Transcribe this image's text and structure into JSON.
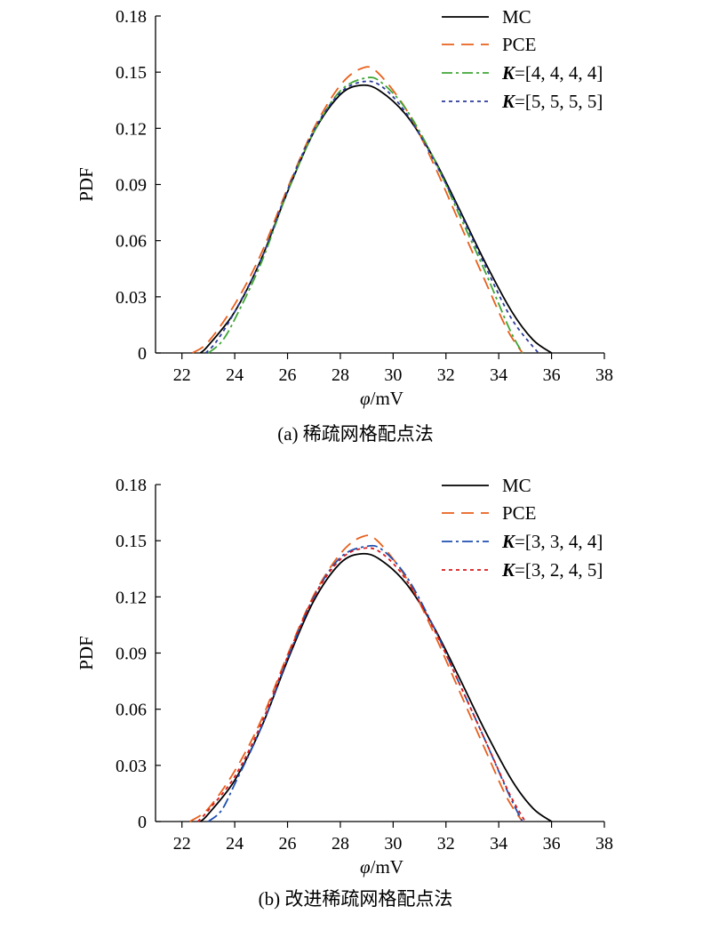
{
  "chart_data": [
    {
      "type": "line",
      "caption": "(a) 稀疏网格配点法",
      "xlabel_symbol": "φ",
      "xlabel_unit": "/mV",
      "ylabel": "PDF",
      "xlim": [
        21,
        38
      ],
      "ylim": [
        0,
        0.18
      ],
      "xticks": [
        "22",
        "24",
        "26",
        "28",
        "30",
        "32",
        "34",
        "36",
        "38"
      ],
      "yticks": [
        "0",
        "0.03",
        "0.06",
        "0.09",
        "0.12",
        "0.15",
        "0.18"
      ],
      "legend_position": "top-right",
      "series": [
        {
          "name": "MC",
          "legend_prefix": "",
          "legend_rest": "MC",
          "color": "#000000",
          "dash": "none",
          "points": [
            [
              22.7,
              0
            ],
            [
              23.0,
              0.004
            ],
            [
              24.0,
              0.022
            ],
            [
              25.0,
              0.05
            ],
            [
              26.0,
              0.086
            ],
            [
              27.0,
              0.118
            ],
            [
              28.0,
              0.138
            ],
            [
              28.8,
              0.143
            ],
            [
              29.5,
              0.14
            ],
            [
              30.5,
              0.127
            ],
            [
              31.5,
              0.105
            ],
            [
              32.5,
              0.077
            ],
            [
              33.5,
              0.048
            ],
            [
              34.5,
              0.022
            ],
            [
              35.3,
              0.007
            ],
            [
              36.0,
              0
            ]
          ]
        },
        {
          "name": "PCE",
          "legend_prefix": "",
          "legend_rest": "PCE",
          "color": "#e8601c",
          "dash": "14,8",
          "points": [
            [
              22.4,
              0
            ],
            [
              23.0,
              0.006
            ],
            [
              24.0,
              0.026
            ],
            [
              25.0,
              0.053
            ],
            [
              26.0,
              0.088
            ],
            [
              27.0,
              0.12
            ],
            [
              28.0,
              0.143
            ],
            [
              28.8,
              0.152
            ],
            [
              29.4,
              0.15
            ],
            [
              30.5,
              0.13
            ],
            [
              31.5,
              0.102
            ],
            [
              32.5,
              0.07
            ],
            [
              33.5,
              0.038
            ],
            [
              34.3,
              0.013
            ],
            [
              34.9,
              0
            ]
          ]
        },
        {
          "name": "K=[4, 4, 4, 4]",
          "legend_prefix": "K",
          "legend_rest": "=[4, 4, 4, 4]",
          "color": "#3fa535",
          "dash": "12,4,3,4",
          "points": [
            [
              23.0,
              0
            ],
            [
              23.5,
              0.006
            ],
            [
              24.0,
              0.018
            ],
            [
              25.0,
              0.048
            ],
            [
              26.0,
              0.086
            ],
            [
              27.0,
              0.118
            ],
            [
              28.0,
              0.14
            ],
            [
              29.0,
              0.147
            ],
            [
              29.6,
              0.144
            ],
            [
              30.5,
              0.13
            ],
            [
              31.5,
              0.105
            ],
            [
              32.5,
              0.074
            ],
            [
              33.5,
              0.043
            ],
            [
              34.4,
              0.013
            ],
            [
              34.9,
              0
            ]
          ]
        },
        {
          "name": "K=[5, 5, 5, 5]",
          "legend_prefix": "K",
          "legend_rest": "=[5, 5, 5, 5]",
          "color": "#2b3a99",
          "dash": "4,4",
          "points": [
            [
              22.9,
              0
            ],
            [
              23.3,
              0.006
            ],
            [
              24.0,
              0.022
            ],
            [
              25.0,
              0.05
            ],
            [
              26.0,
              0.087
            ],
            [
              27.0,
              0.119
            ],
            [
              28.0,
              0.139
            ],
            [
              28.9,
              0.145
            ],
            [
              29.6,
              0.142
            ],
            [
              30.5,
              0.128
            ],
            [
              31.5,
              0.104
            ],
            [
              32.5,
              0.076
            ],
            [
              33.5,
              0.046
            ],
            [
              34.5,
              0.018
            ],
            [
              35.5,
              0
            ]
          ]
        }
      ]
    },
    {
      "type": "line",
      "caption": "(b) 改进稀疏网格配点法",
      "xlabel_symbol": "φ",
      "xlabel_unit": "/mV",
      "ylabel": "PDF",
      "xlim": [
        21,
        38
      ],
      "ylim": [
        0,
        0.18
      ],
      "xticks": [
        "22",
        "24",
        "26",
        "28",
        "30",
        "32",
        "34",
        "36",
        "38"
      ],
      "yticks": [
        "0",
        "0.03",
        "0.06",
        "0.09",
        "0.12",
        "0.15",
        "0.18"
      ],
      "legend_position": "top-right",
      "series": [
        {
          "name": "MC",
          "legend_prefix": "",
          "legend_rest": "MC",
          "color": "#000000",
          "dash": "none",
          "points": [
            [
              22.7,
              0
            ],
            [
              23.0,
              0.004
            ],
            [
              24.0,
              0.022
            ],
            [
              25.0,
              0.05
            ],
            [
              26.0,
              0.086
            ],
            [
              27.0,
              0.118
            ],
            [
              28.0,
              0.138
            ],
            [
              28.8,
              0.143
            ],
            [
              29.5,
              0.14
            ],
            [
              30.5,
              0.127
            ],
            [
              31.5,
              0.105
            ],
            [
              32.5,
              0.077
            ],
            [
              33.5,
              0.048
            ],
            [
              34.5,
              0.022
            ],
            [
              35.3,
              0.007
            ],
            [
              36.0,
              0
            ]
          ]
        },
        {
          "name": "PCE",
          "legend_prefix": "",
          "legend_rest": "PCE",
          "color": "#e8601c",
          "dash": "14,8",
          "points": [
            [
              22.3,
              0
            ],
            [
              23.0,
              0.007
            ],
            [
              24.0,
              0.027
            ],
            [
              25.0,
              0.054
            ],
            [
              26.0,
              0.089
            ],
            [
              27.0,
              0.121
            ],
            [
              28.0,
              0.143
            ],
            [
              28.8,
              0.152
            ],
            [
              29.4,
              0.15
            ],
            [
              30.5,
              0.13
            ],
            [
              31.5,
              0.102
            ],
            [
              32.5,
              0.07
            ],
            [
              33.5,
              0.038
            ],
            [
              34.3,
              0.013
            ],
            [
              34.9,
              0
            ]
          ]
        },
        {
          "name": "K=[3, 3, 4, 4]",
          "legend_prefix": "K",
          "legend_rest": "=[3, 3, 4, 4]",
          "color": "#1f4fb0",
          "dash": "12,4,3,4",
          "points": [
            [
              23.0,
              0
            ],
            [
              23.5,
              0.006
            ],
            [
              24.0,
              0.02
            ],
            [
              25.0,
              0.05
            ],
            [
              26.0,
              0.087
            ],
            [
              27.0,
              0.12
            ],
            [
              28.0,
              0.141
            ],
            [
              29.0,
              0.147
            ],
            [
              29.6,
              0.145
            ],
            [
              30.5,
              0.131
            ],
            [
              31.5,
              0.105
            ],
            [
              32.5,
              0.074
            ],
            [
              33.5,
              0.043
            ],
            [
              34.4,
              0.014
            ],
            [
              34.9,
              0
            ]
          ]
        },
        {
          "name": "K=[3, 2, 4, 5]",
          "legend_prefix": "K",
          "legend_rest": "=[3, 2, 4, 5]",
          "color": "#d7191c",
          "dash": "4,4",
          "points": [
            [
              22.6,
              0
            ],
            [
              23.0,
              0.006
            ],
            [
              24.0,
              0.024
            ],
            [
              25.0,
              0.052
            ],
            [
              26.0,
              0.088
            ],
            [
              27.0,
              0.12
            ],
            [
              28.0,
              0.14
            ],
            [
              28.9,
              0.146
            ],
            [
              29.6,
              0.143
            ],
            [
              30.5,
              0.129
            ],
            [
              31.5,
              0.104
            ],
            [
              32.5,
              0.074
            ],
            [
              33.5,
              0.043
            ],
            [
              34.4,
              0.015
            ],
            [
              35.0,
              0
            ]
          ]
        }
      ]
    }
  ]
}
